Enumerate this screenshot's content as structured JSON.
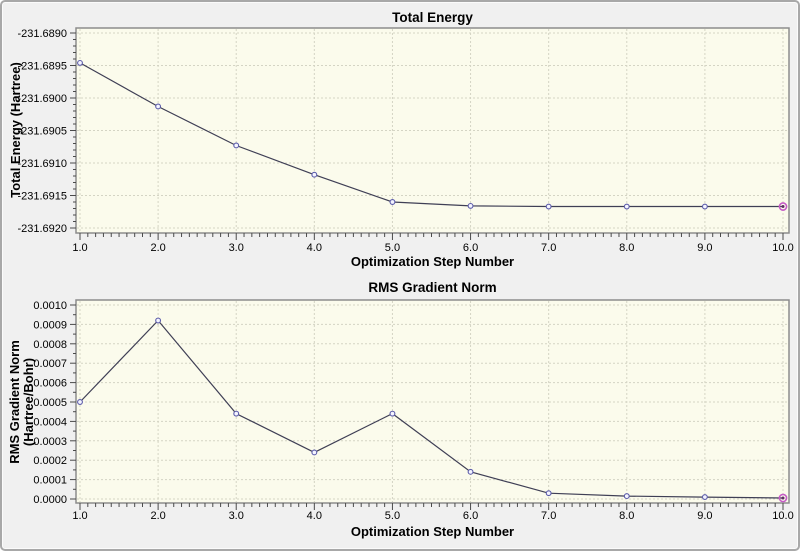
{
  "window": {
    "background": "#f0f0f0",
    "border_color": "#a8a8a8"
  },
  "style": {
    "plot_bg": "#fbfbec",
    "grid_color": "#d4d4c4",
    "axis_color": "#8c8c8c",
    "tick_color": "#4a4a4a",
    "text_color": "#000000",
    "line_color": "#3f3f55",
    "marker_stroke": "#5c5caa",
    "marker_fill": "#f4f4ff",
    "final_marker_ring": "#c65bc6",
    "final_marker_core": "#5f2f63"
  },
  "chart_data": [
    {
      "type": "line",
      "title": "Total Energy",
      "xlabel": "Optimization Step Number",
      "ylabel": "Total Energy (Hartree)",
      "ylabel_lines": [
        "Total Energy (Hartree)"
      ],
      "x": [
        1,
        2,
        3,
        4,
        5,
        6,
        7,
        8,
        9,
        10
      ],
      "values": [
        -231.68946,
        -231.69013,
        -231.69073,
        -231.69118,
        -231.6916,
        -231.69166,
        -231.69167,
        -231.69167,
        -231.69167,
        -231.69167
      ],
      "xlim": [
        1,
        10
      ],
      "ylim": [
        -231.692,
        -231.689
      ],
      "x_ticks": [
        "1.0",
        "2.0",
        "3.0",
        "4.0",
        "5.0",
        "6.0",
        "7.0",
        "8.0",
        "9.0",
        "10.0"
      ],
      "y_ticks": [
        "-231.6890",
        "-231.6895",
        "-231.6900",
        "-231.6905",
        "-231.6910",
        "-231.6915",
        "-231.6920"
      ],
      "y_minor_divisions": 5,
      "x_minor_divisions": 10,
      "grid": true,
      "legend": "none",
      "final_point_highlighted": true
    },
    {
      "type": "line",
      "title": "RMS Gradient Norm",
      "xlabel": "Optimization Step Number",
      "ylabel": "RMS Gradient Norm (Hartree/Bohr)",
      "ylabel_lines": [
        "RMS Gradient Norm",
        "(Hartree/Bohr)"
      ],
      "x": [
        1,
        2,
        3,
        4,
        5,
        6,
        7,
        8,
        9,
        10
      ],
      "values": [
        0.0005,
        0.00092,
        0.00044,
        0.00024,
        0.00044,
        0.00014,
        3e-05,
        1.5e-05,
        1e-05,
        5e-06
      ],
      "xlim": [
        1,
        10
      ],
      "ylim": [
        0.0,
        0.001
      ],
      "x_ticks": [
        "1.0",
        "2.0",
        "3.0",
        "4.0",
        "5.0",
        "6.0",
        "7.0",
        "8.0",
        "9.0",
        "10.0"
      ],
      "y_ticks": [
        "0.0010",
        "0.0009",
        "0.0008",
        "0.0007",
        "0.0006",
        "0.0005",
        "0.0004",
        "0.0003",
        "0.0002",
        "0.0001",
        "0.0000"
      ],
      "y_minor_divisions": 2,
      "x_minor_divisions": 10,
      "grid": true,
      "legend": "none",
      "final_point_highlighted": true
    }
  ]
}
